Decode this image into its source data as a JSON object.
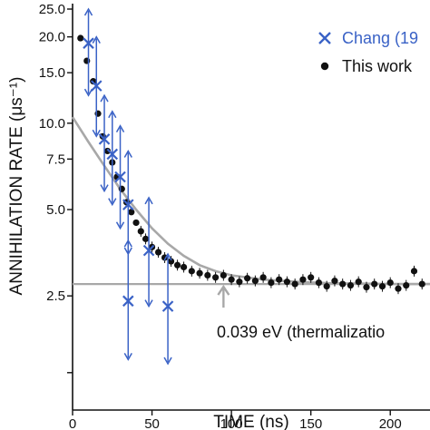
{
  "chart_data": {
    "type": "scatter",
    "title": "",
    "xlabel": "TIME (ns)",
    "ylabel": "ANNIHILATION RATE (μs⁻¹)",
    "xlim": [
      0,
      225
    ],
    "ylim": [
      1.0,
      25.0
    ],
    "y_scale": "log",
    "x_ticks": [
      0,
      50,
      100,
      150,
      200
    ],
    "x_tick_labels": [
      "0",
      "50",
      "100",
      "150",
      "200"
    ],
    "y_ticks": [
      25.0,
      20.0,
      15.0,
      10.0,
      7.5,
      5.0,
      2.5
    ],
    "y_tick_labels": [
      "25.0",
      "20.0",
      "15.0",
      "10.0",
      "7.5",
      "5.0",
      "2.5"
    ],
    "grid": false,
    "legend": {
      "placement": "top-right",
      "entries": [
        {
          "label": "Chang (19",
          "marker": "x",
          "color": "#3a62c6"
        },
        {
          "label": "This work",
          "marker": "circle",
          "color": "#111111"
        }
      ]
    },
    "series": [
      {
        "name": "Chang (19",
        "marker": "x",
        "color": "#3a62c6",
        "points": [
          {
            "x": 10,
            "y": 19.0,
            "ylo": 12.5,
            "yhi": 25.0
          },
          {
            "x": 15,
            "y": 13.5,
            "ylo": 9.0,
            "yhi": 20.0
          },
          {
            "x": 20,
            "y": 8.8,
            "ylo": 5.8,
            "yhi": 12.5
          },
          {
            "x": 25,
            "y": 7.8,
            "ylo": 5.2,
            "yhi": 11.0
          },
          {
            "x": 30,
            "y": 6.5,
            "ylo": 4.3,
            "yhi": 9.8
          },
          {
            "x": 35,
            "y": 5.2,
            "ylo": 3.5,
            "yhi": 8.0
          },
          {
            "x": 35,
            "y": 2.4,
            "ylo": 1.5,
            "yhi": 3.9
          },
          {
            "x": 48,
            "y": 3.6,
            "ylo": 2.3,
            "yhi": 5.5
          },
          {
            "x": 60,
            "y": 2.3,
            "ylo": 1.45,
            "yhi": 3.5
          }
        ]
      },
      {
        "name": "This work",
        "marker": "circle",
        "color": "#111111",
        "points": [
          {
            "x": 5,
            "y": 19.8
          },
          {
            "x": 9,
            "y": 16.5
          },
          {
            "x": 13,
            "y": 14.0
          },
          {
            "x": 16,
            "y": 10.8
          },
          {
            "x": 19,
            "y": 9.0
          },
          {
            "x": 22,
            "y": 8.0
          },
          {
            "x": 25,
            "y": 7.3
          },
          {
            "x": 28,
            "y": 6.5
          },
          {
            "x": 31,
            "y": 5.9
          },
          {
            "x": 34,
            "y": 5.3
          },
          {
            "x": 37,
            "y": 4.9
          },
          {
            "x": 40,
            "y": 4.5
          },
          {
            "x": 43,
            "y": 4.2
          },
          {
            "x": 46,
            "y": 3.95
          },
          {
            "x": 50,
            "y": 3.7
          },
          {
            "x": 54,
            "y": 3.55
          },
          {
            "x": 58,
            "y": 3.4
          },
          {
            "x": 62,
            "y": 3.3
          },
          {
            "x": 66,
            "y": 3.2
          },
          {
            "x": 70,
            "y": 3.15
          },
          {
            "x": 75,
            "y": 3.05
          },
          {
            "x": 80,
            "y": 3.0
          },
          {
            "x": 85,
            "y": 2.95
          },
          {
            "x": 90,
            "y": 2.9
          },
          {
            "x": 95,
            "y": 2.95
          },
          {
            "x": 100,
            "y": 2.85
          },
          {
            "x": 105,
            "y": 2.8
          },
          {
            "x": 110,
            "y": 2.88
          },
          {
            "x": 115,
            "y": 2.82
          },
          {
            "x": 120,
            "y": 2.9
          },
          {
            "x": 125,
            "y": 2.78
          },
          {
            "x": 130,
            "y": 2.85
          },
          {
            "x": 135,
            "y": 2.8
          },
          {
            "x": 140,
            "y": 2.75
          },
          {
            "x": 145,
            "y": 2.85
          },
          {
            "x": 150,
            "y": 2.9
          },
          {
            "x": 155,
            "y": 2.78
          },
          {
            "x": 160,
            "y": 2.7
          },
          {
            "x": 165,
            "y": 2.82
          },
          {
            "x": 170,
            "y": 2.75
          },
          {
            "x": 175,
            "y": 2.72
          },
          {
            "x": 180,
            "y": 2.8
          },
          {
            "x": 185,
            "y": 2.68
          },
          {
            "x": 190,
            "y": 2.75
          },
          {
            "x": 195,
            "y": 2.7
          },
          {
            "x": 200,
            "y": 2.78
          },
          {
            "x": 205,
            "y": 2.65
          },
          {
            "x": 210,
            "y": 2.72
          },
          {
            "x": 215,
            "y": 3.05
          },
          {
            "x": 220,
            "y": 2.75
          }
        ]
      }
    ],
    "fit_curve": {
      "color": "#a8a8a8",
      "points": [
        {
          "x": 0,
          "y": 10.5
        },
        {
          "x": 10,
          "y": 8.6
        },
        {
          "x": 20,
          "y": 7.1
        },
        {
          "x": 30,
          "y": 5.9
        },
        {
          "x": 40,
          "y": 5.0
        },
        {
          "x": 50,
          "y": 4.3
        },
        {
          "x": 60,
          "y": 3.8
        },
        {
          "x": 70,
          "y": 3.45
        },
        {
          "x": 80,
          "y": 3.2
        },
        {
          "x": 90,
          "y": 3.05
        },
        {
          "x": 100,
          "y": 2.95
        },
        {
          "x": 120,
          "y": 2.85
        },
        {
          "x": 140,
          "y": 2.8
        },
        {
          "x": 160,
          "y": 2.77
        },
        {
          "x": 180,
          "y": 2.76
        },
        {
          "x": 200,
          "y": 2.75
        },
        {
          "x": 225,
          "y": 2.75
        }
      ]
    },
    "reference_line": {
      "y": 2.75,
      "color": "#a8a8a8"
    },
    "annotation": {
      "text": "0.039 eV (thermalizatio",
      "arrow_x": 95,
      "arrow_y": 2.75,
      "color": "#a8a8a8"
    }
  }
}
